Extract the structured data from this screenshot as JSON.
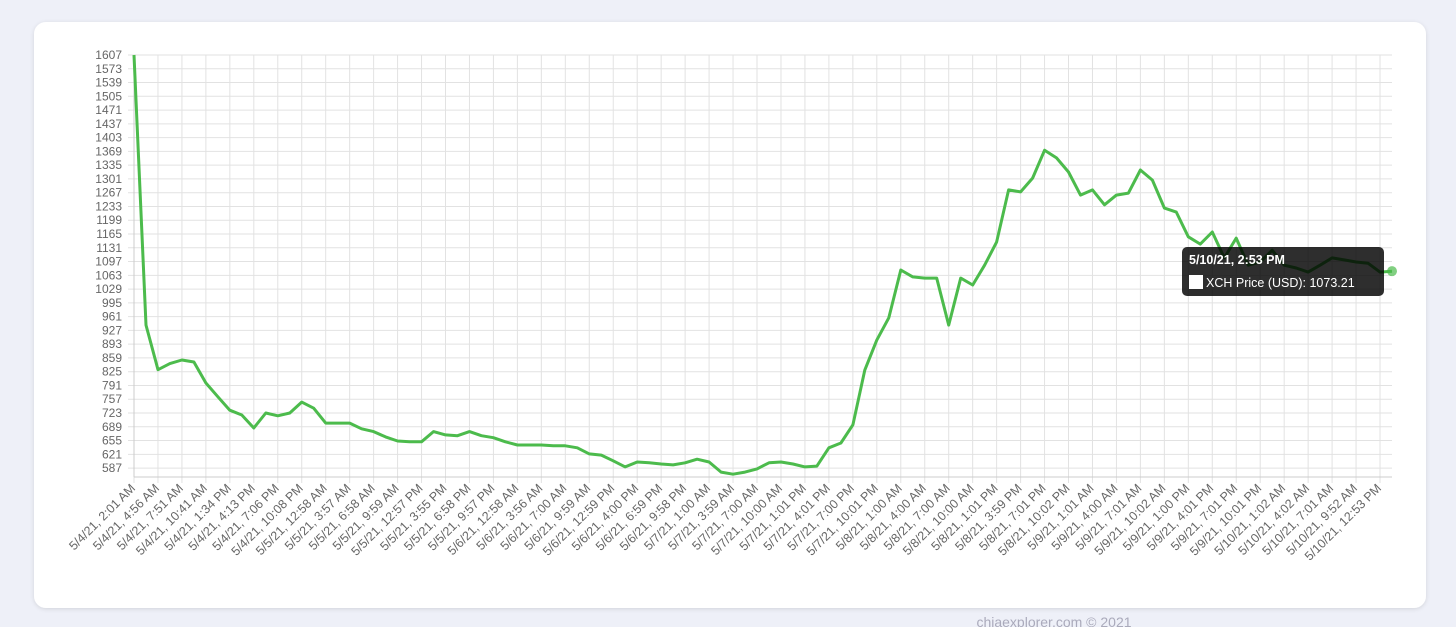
{
  "chart_data": {
    "type": "line",
    "categories": [
      "5/4/21, 2:01 AM",
      null,
      "5/4/21, 4:56 AM",
      null,
      "5/4/21, 7:51 AM",
      null,
      "5/4/21, 10:41 AM",
      null,
      "5/4/21, 1:34 PM",
      null,
      "5/4/21, 4:13 PM",
      null,
      "5/4/21, 7:06 PM",
      null,
      "5/4/21, 10:08 PM",
      null,
      "5/5/21, 12:58 AM",
      null,
      "5/5/21, 3:57 AM",
      null,
      "5/5/21, 6:58 AM",
      null,
      "5/5/21, 9:59 AM",
      null,
      "5/5/21, 12:57 PM",
      null,
      "5/5/21, 3:55 PM",
      null,
      "5/5/21, 6:58 PM",
      null,
      "5/5/21, 9:57 PM",
      null,
      "5/6/21, 12:58 AM",
      null,
      "5/6/21, 3:56 AM",
      null,
      "5/6/21, 7:00 AM",
      null,
      "5/6/21, 9:59 AM",
      null,
      "5/6/21, 12:59 PM",
      null,
      "5/6/21, 4:00 PM",
      null,
      "5/6/21, 6:59 PM",
      null,
      "5/6/21, 9:58 PM",
      null,
      "5/7/21, 1:00 AM",
      null,
      "5/7/21, 3:59 AM",
      null,
      "5/7/21, 7:00 AM",
      null,
      "5/7/21, 10:00 AM",
      null,
      "5/7/21, 1:01 PM",
      null,
      "5/7/21, 4:01 PM",
      null,
      "5/7/21, 7:00 PM",
      null,
      "5/7/21, 10:01 PM",
      null,
      "5/8/21, 1:00 AM",
      null,
      "5/8/21, 4:00 AM",
      null,
      "5/8/21, 7:00 AM",
      null,
      "5/8/21, 10:00 AM",
      null,
      "5/8/21, 1:01 PM",
      null,
      "5/8/21, 3:59 PM",
      null,
      "5/8/21, 7:01 PM",
      null,
      "5/8/21, 10:02 PM",
      null,
      "5/9/21, 1:01 AM",
      null,
      "5/9/21, 4:00 AM",
      null,
      "5/9/21, 7:01 AM",
      null,
      "5/9/21, 10:02 AM",
      null,
      "5/9/21, 1:00 PM",
      null,
      "5/9/21, 4:01 PM",
      null,
      "5/9/21, 7:01 PM",
      null,
      "5/9/21, 10:01 PM",
      null,
      "5/10/21, 1:02 AM",
      null,
      "5/10/21, 4:02 AM",
      null,
      "5/10/21, 7:01 AM",
      null,
      "5/10/21, 9:52 AM",
      null,
      "5/10/21, 12:53 PM",
      null
    ],
    "values": [
      1607,
      940,
      830,
      845,
      854,
      849,
      797,
      763,
      730,
      718,
      686,
      723,
      716,
      723,
      750,
      735,
      698,
      698,
      698,
      684,
      677,
      664,
      654,
      652,
      652,
      677,
      669,
      667,
      677,
      667,
      662,
      652,
      644,
      644,
      644,
      642,
      642,
      637,
      622,
      619,
      605,
      590,
      602,
      600,
      597,
      595,
      600,
      609,
      602,
      577,
      572,
      577,
      585,
      600,
      602,
      597,
      590,
      592,
      637,
      649,
      694,
      829,
      903,
      958,
      1076,
      1059,
      1056,
      1056,
      940,
      1056,
      1039,
      1088,
      1145,
      1274,
      1269,
      1303,
      1372,
      1353,
      1318,
      1261,
      1274,
      1237,
      1261,
      1266,
      1323,
      1298,
      1229,
      1219,
      1158,
      1140,
      1170,
      1106,
      1155,
      1088,
      1096,
      1125,
      1088,
      1081,
      1071,
      1088,
      1106,
      1101,
      1096,
      1093,
      1071,
      1073.21
    ],
    "color": "#4cbb4c",
    "ylim": [
      565,
      1607
    ],
    "yticks": [
      1607,
      1573,
      1539,
      1505,
      1471,
      1437,
      1403,
      1369,
      1335,
      1301,
      1267,
      1233,
      1199,
      1165,
      1131,
      1097,
      1063,
      1029,
      995,
      961,
      927,
      893,
      859,
      825,
      791,
      757,
      723,
      689,
      655,
      621,
      587
    ],
    "grid": true,
    "tooltip": {
      "title": "5/10/21, 2:53 PM",
      "label": "XCH Price (USD): 1073.21"
    },
    "footer": "chiaexplorer.com © 2021"
  }
}
